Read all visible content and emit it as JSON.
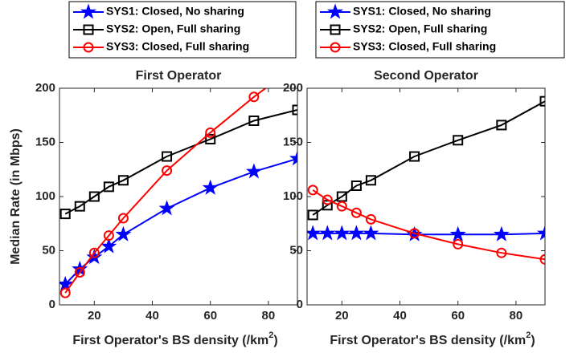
{
  "chart_data": [
    {
      "type": "line",
      "title": "First Operator",
      "xlabel": [
        "First Operator's BS density (/km",
        "2",
        ")"
      ],
      "ylabel": "Median Rate (in Mbps)",
      "x": [
        10,
        15,
        20,
        25,
        30,
        45,
        60,
        75,
        90
      ],
      "series": [
        {
          "name": "SYS1: Closed, No sharing",
          "color": "#0000ff",
          "marker": "star",
          "values": [
            19,
            33,
            44,
            54,
            65,
            89,
            108,
            123,
            135
          ]
        },
        {
          "name": "SYS2: Open, Full sharing",
          "color": "#000000",
          "marker": "square",
          "values": [
            84,
            91,
            100,
            109,
            115,
            137,
            153,
            170,
            180
          ]
        },
        {
          "name": "SYS3: Closed, Full sharing",
          "color": "#ff0000",
          "marker": "circle",
          "values": [
            11,
            30,
            48,
            64,
            80,
            124,
            159,
            192,
            222
          ]
        }
      ],
      "xlim": [
        8,
        90
      ],
      "ylim": [
        0,
        200
      ],
      "xticks": [
        20,
        40,
        60,
        80
      ],
      "yticks": [
        0,
        50,
        100,
        150,
        200
      ]
    },
    {
      "type": "line",
      "title": "Second Operator",
      "xlabel": [
        "First Operator's BS density (/km",
        "2",
        ")"
      ],
      "x": [
        10,
        15,
        20,
        25,
        30,
        45,
        60,
        75,
        90
      ],
      "series": [
        {
          "name": "SYS1: Closed, No sharing",
          "color": "#0000ff",
          "marker": "star",
          "values": [
            66,
            66,
            66,
            66,
            66,
            65,
            65,
            65,
            66
          ]
        },
        {
          "name": "SYS2: Open, Full sharing",
          "color": "#000000",
          "marker": "square",
          "values": [
            83,
            92,
            100,
            110,
            115,
            137,
            152,
            166,
            188
          ]
        },
        {
          "name": "SYS3: Closed, Full sharing",
          "color": "#ff0000",
          "marker": "circle",
          "values": [
            106,
            97,
            91,
            85,
            79,
            66,
            56,
            48,
            42
          ]
        }
      ],
      "xlim": [
        8,
        90
      ],
      "ylim": [
        0,
        200
      ],
      "xticks": [
        20,
        40,
        60,
        80
      ],
      "yticks": [
        0,
        50,
        100,
        150,
        200
      ]
    }
  ]
}
